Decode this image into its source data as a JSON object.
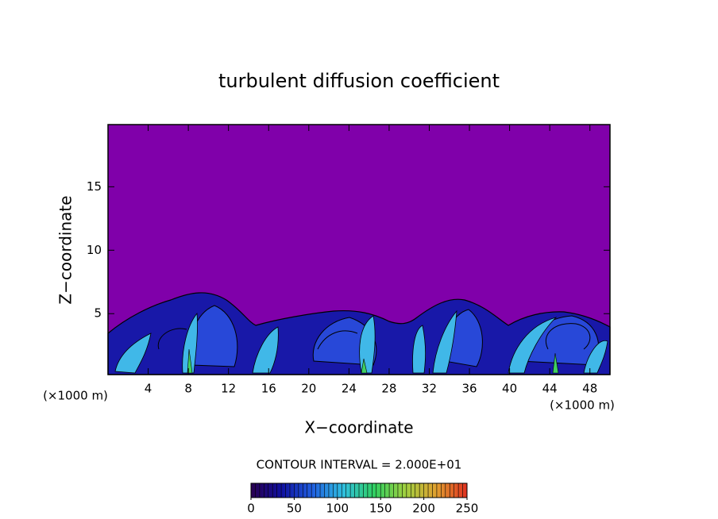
{
  "chart_data": {
    "type": "contour",
    "title": "turbulent diffusion coefficient",
    "x_label": "X−coordinate",
    "y_label": "Z−coordinate",
    "x_unit_left": "(×1000 m)",
    "x_unit_right": "(×1000 m)",
    "xlim": [
      0,
      50
    ],
    "xticks": [
      4,
      8,
      12,
      16,
      20,
      24,
      28,
      32,
      36,
      40,
      44,
      48
    ],
    "ylim": [
      0.2,
      19.9
    ],
    "yticks": [
      5,
      10,
      15
    ],
    "background_color": "#8000aa",
    "colorbar": {
      "caption": "CONTOUR INTERVAL = 2.000E+01",
      "clim": [
        0,
        250
      ],
      "ticks": [
        0,
        50,
        100,
        150,
        200,
        250
      ],
      "interval": 20,
      "colors": [
        "#2a0050",
        "#1010a0",
        "#2060e0",
        "#30c0e0",
        "#30d060",
        "#a0d040",
        "#e0a030",
        "#e03020"
      ]
    }
  }
}
